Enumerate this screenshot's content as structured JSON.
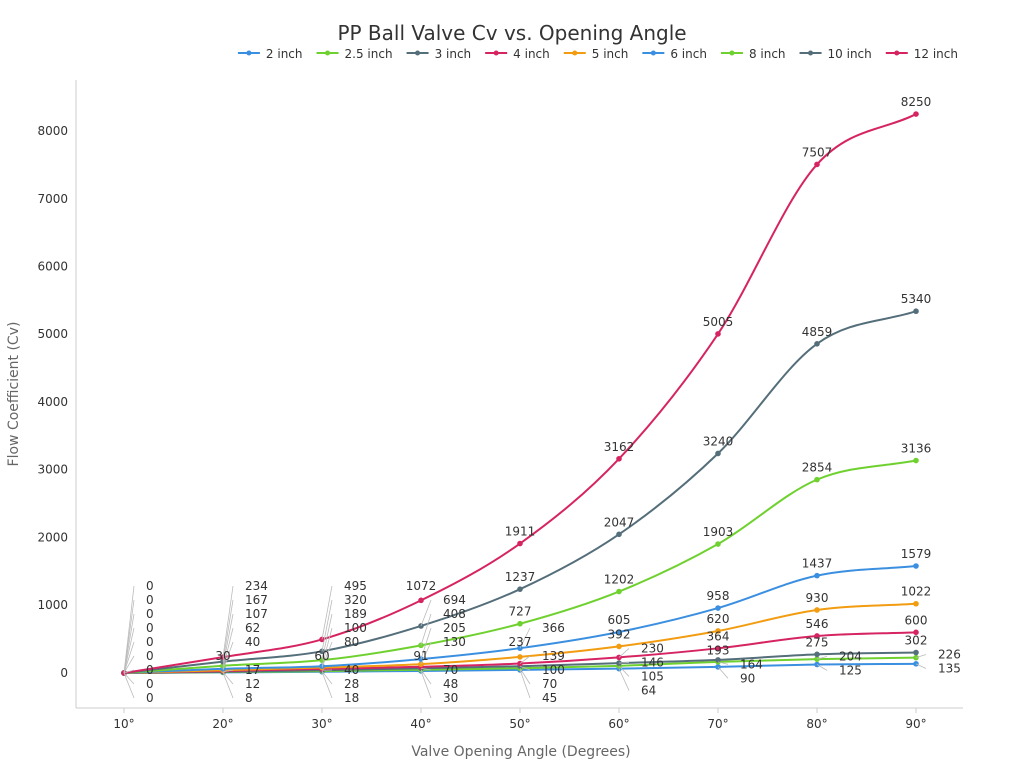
{
  "chart_data": {
    "type": "line",
    "title": "PP Ball Valve Cv vs. Opening Angle",
    "xlabel": "Valve Opening Angle (Degrees)",
    "ylabel": "Flow Coefficient (Cv)",
    "categories": [
      "10°",
      "20°",
      "30°",
      "40°",
      "50°",
      "60°",
      "70°",
      "80°",
      "90°"
    ],
    "x": [
      10,
      20,
      30,
      40,
      50,
      60,
      70,
      80,
      90
    ],
    "ylim": [
      -517,
      8753
    ],
    "yticks": [
      0,
      1000,
      2000,
      3000,
      4000,
      5000,
      6000,
      7000,
      8000
    ],
    "grid": false,
    "legend": "top",
    "series": [
      {
        "name": "2 inch",
        "color": "#3b8fe0",
        "values": [
          0,
          8,
          18,
          30,
          45,
          64,
          90,
          125,
          135
        ]
      },
      {
        "name": "2.5 inch",
        "color": "#6fd12f",
        "values": [
          0,
          12,
          28,
          48,
          70,
          105,
          164,
          204,
          226
        ]
      },
      {
        "name": "3 inch",
        "color": "#546e7a",
        "values": [
          0,
          17,
          40,
          70,
          100,
          146,
          193,
          275,
          302
        ]
      },
      {
        "name": "4 inch",
        "color": "#d62462",
        "values": [
          0,
          30,
          60,
          91,
          139,
          230,
          364,
          546,
          600
        ]
      },
      {
        "name": "5 inch",
        "color": "#f29c11",
        "values": [
          0,
          40,
          80,
          130,
          237,
          392,
          620,
          930,
          1022
        ]
      },
      {
        "name": "6 inch",
        "color": "#3b8fe0",
        "values": [
          0,
          62,
          100,
          205,
          366,
          605,
          958,
          1437,
          1579
        ]
      },
      {
        "name": "8 inch",
        "color": "#6fd12f",
        "values": [
          0,
          107,
          189,
          408,
          727,
          1202,
          1903,
          2854,
          3136
        ]
      },
      {
        "name": "10 inch",
        "color": "#546e7a",
        "values": [
          0,
          167,
          320,
          694,
          1237,
          2047,
          3240,
          4859,
          5340
        ]
      },
      {
        "name": "12 inch",
        "color": "#d62462",
        "values": [
          0,
          234,
          495,
          1072,
          1911,
          3162,
          5005,
          7507,
          8250
        ]
      }
    ]
  }
}
